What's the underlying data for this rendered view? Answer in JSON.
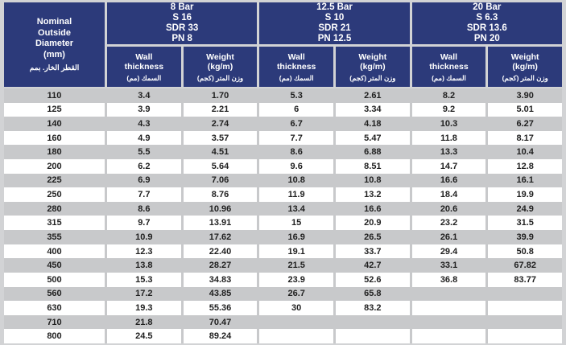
{
  "colors": {
    "header_bg": "#2c3a7a",
    "header_text": "#ffffff",
    "stripe_gray": "#c8c9cb",
    "page_bg": "#d2d3d5",
    "row_white": "#ffffff",
    "data_text": "#1f1f1f"
  },
  "diameter_header": {
    "lines": [
      "Nominal",
      "Outside",
      "Diameter",
      "(mm)"
    ],
    "arabic": "القطر الخار. بمم"
  },
  "groups": [
    {
      "id": "8-bar",
      "title_lines": [
        "8 Bar",
        "S 16",
        "SDR 33",
        "PN 8"
      ]
    },
    {
      "id": "12-5-bar",
      "title_lines": [
        "12.5 Bar",
        "S 10",
        "SDR 21",
        "PN 12.5"
      ]
    },
    {
      "id": "20-bar",
      "title_lines": [
        "20 Bar",
        "S 6.3",
        "SDR 13.6",
        "PN 20"
      ]
    }
  ],
  "subheaders": {
    "wall_en": [
      "Wall",
      "thickness"
    ],
    "wall_ar": "السمك  (مم)",
    "weight_en": [
      "Weight",
      "(kg/m)"
    ],
    "weight_ar": "وزن المتر (كجم)"
  },
  "rows": [
    {
      "diameter": "110",
      "values": [
        "3.4",
        "1.70",
        "5.3",
        "2.61",
        "8.2",
        "3.90"
      ]
    },
    {
      "diameter": "125",
      "values": [
        "3.9",
        "2.21",
        "6",
        "3.34",
        "9.2",
        "5.01"
      ]
    },
    {
      "diameter": "140",
      "values": [
        "4.3",
        "2.74",
        "6.7",
        "4.18",
        "10.3",
        "6.27"
      ]
    },
    {
      "diameter": "160",
      "values": [
        "4.9",
        "3.57",
        "7.7",
        "5.47",
        "11.8",
        "8.17"
      ]
    },
    {
      "diameter": "180",
      "values": [
        "5.5",
        "4.51",
        "8.6",
        "6.88",
        "13.3",
        "10.4"
      ]
    },
    {
      "diameter": "200",
      "values": [
        "6.2",
        "5.64",
        "9.6",
        "8.51",
        "14.7",
        "12.8"
      ]
    },
    {
      "diameter": "225",
      "values": [
        "6.9",
        "7.06",
        "10.8",
        "10.8",
        "16.6",
        "16.1"
      ]
    },
    {
      "diameter": "250",
      "values": [
        "7.7",
        "8.76",
        "11.9",
        "13.2",
        "18.4",
        "19.9"
      ]
    },
    {
      "diameter": "280",
      "values": [
        "8.6",
        "10.96",
        "13.4",
        "16.6",
        "20.6",
        "24.9"
      ]
    },
    {
      "diameter": "315",
      "values": [
        "9.7",
        "13.91",
        "15",
        "20.9",
        "23.2",
        "31.5"
      ]
    },
    {
      "diameter": "355",
      "values": [
        "10.9",
        "17.62",
        "16.9",
        "26.5",
        "26.1",
        "39.9"
      ]
    },
    {
      "diameter": "400",
      "values": [
        "12.3",
        "22.40",
        "19.1",
        "33.7",
        "29.4",
        "50.8"
      ]
    },
    {
      "diameter": "450",
      "values": [
        "13.8",
        "28.27",
        "21.5",
        "42.7",
        "33.1",
        "67.82"
      ]
    },
    {
      "diameter": "500",
      "values": [
        "15.3",
        "34.83",
        "23.9",
        "52.6",
        "36.8",
        "83.77"
      ]
    },
    {
      "diameter": "560",
      "values": [
        "17.2",
        "43.85",
        "26.7",
        "65.8",
        "",
        ""
      ]
    },
    {
      "diameter": "630",
      "values": [
        "19.3",
        "55.36",
        "30",
        "83.2",
        "",
        ""
      ]
    },
    {
      "diameter": "710",
      "values": [
        "21.8",
        "70.47",
        "",
        "",
        "",
        ""
      ]
    },
    {
      "diameter": "800",
      "values": [
        "24.5",
        "89.24",
        "",
        "",
        "",
        ""
      ]
    }
  ]
}
